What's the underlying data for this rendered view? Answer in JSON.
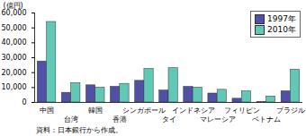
{
  "chart_data": {
    "type": "bar",
    "y_label": "(億円)",
    "categories": [
      "中国",
      "台湾",
      "韓国",
      "香港",
      "シンガポール",
      "タイ",
      "インドネシア",
      "マレーシア",
      "フィリピン",
      "ベトナム",
      "ブラジル"
    ],
    "series": [
      {
        "name": "1997年",
        "color": "#5050a6",
        "values": [
          27500,
          6500,
          11500,
          10500,
          14500,
          8000,
          10500,
          6000,
          2500,
          300,
          7500
        ]
      },
      {
        "name": "2010年",
        "color": "#62c8b6",
        "values": [
          54000,
          13000,
          10000,
          12500,
          22500,
          23000,
          10000,
          8500,
          7500,
          4000,
          22000
        ]
      }
    ],
    "ylim": [
      0,
      60000
    ],
    "yticks": [
      0,
      {
        "value": 10000,
        "label": "10,000"
      },
      {
        "value": 20000,
        "label": "20,000"
      },
      {
        "value": 30000,
        "label": "30,000"
      },
      {
        "value": 40000,
        "label": "40,000"
      },
      {
        "value": 50000,
        "label": "50,000"
      },
      {
        "value": 60000,
        "label": "60,000"
      }
    ],
    "grid": false,
    "legend": "top-right",
    "caption": "資料：日本銀行から作成。"
  }
}
